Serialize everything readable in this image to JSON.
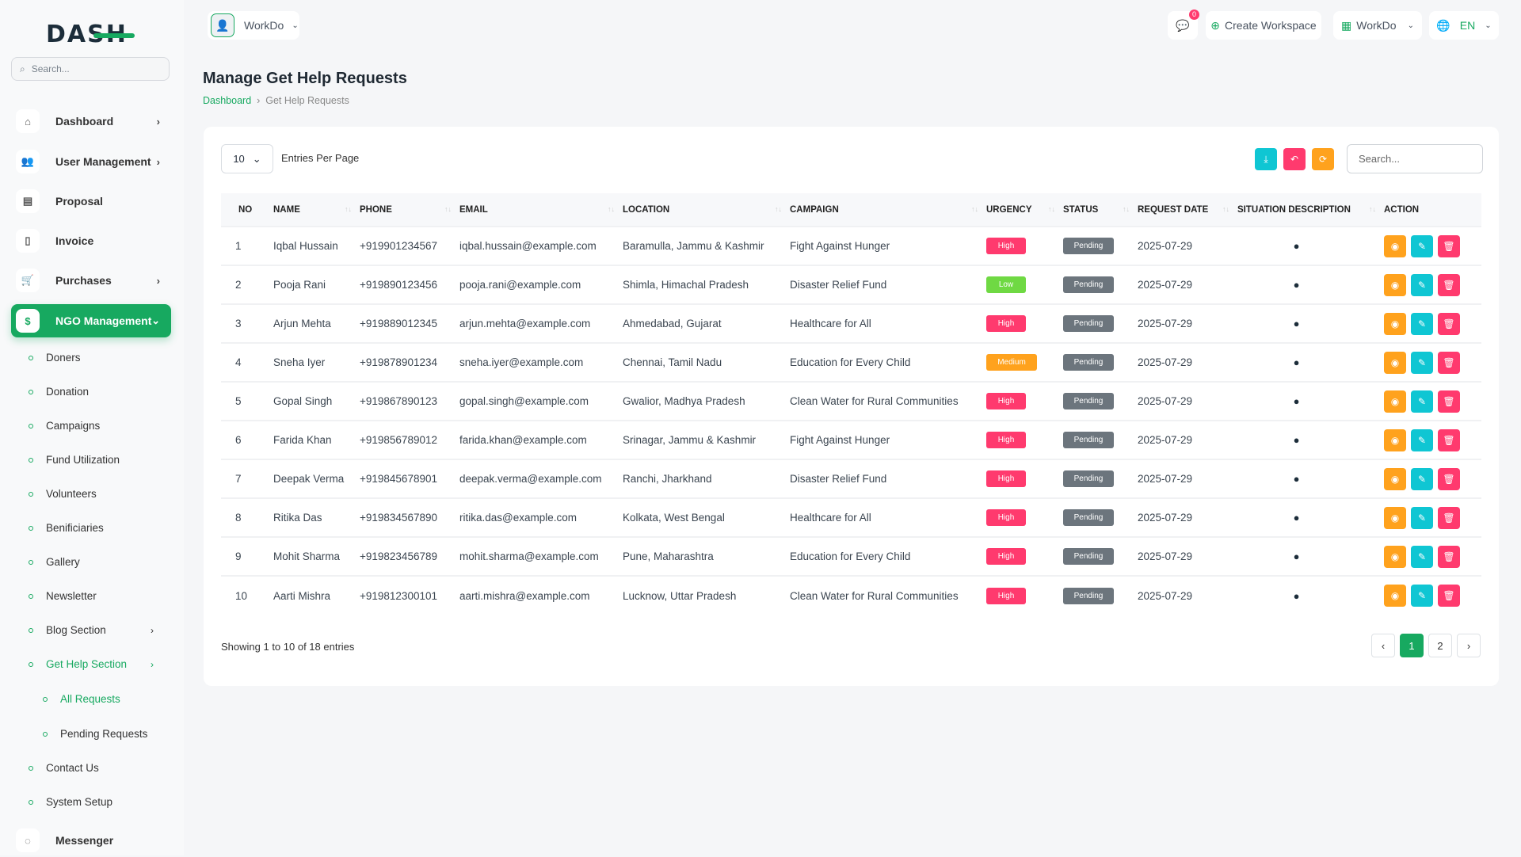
{
  "brand": {
    "logo": "DASH",
    "accent": "#17a960"
  },
  "sidebar": {
    "search_placeholder": "Search...",
    "items": [
      {
        "label": "Dashboard",
        "icon": "home-icon"
      },
      {
        "label": "User Management",
        "icon": "users-icon"
      },
      {
        "label": "Proposal",
        "icon": "proposal-icon"
      },
      {
        "label": "Invoice",
        "icon": "invoice-icon"
      },
      {
        "label": "Purchases",
        "icon": "cart-icon"
      },
      {
        "label": "NGO Management",
        "icon": "dollar-icon"
      }
    ],
    "ngo_sub": [
      "Doners",
      "Donation",
      "Campaigns",
      "Fund Utilization",
      "Volunteers",
      "Benificiaries",
      "Gallery",
      "Newsletter",
      "Blog Section",
      "Get Help Section"
    ],
    "help_sub": [
      "All Requests",
      "Pending Requests"
    ],
    "after": [
      "Contact Us",
      "System Setup"
    ],
    "messenger": "Messenger"
  },
  "header": {
    "workspace": "WorkDo",
    "notif_count": "0",
    "create_workspace": "Create Workspace",
    "workdo": "WorkDo",
    "lang": "EN"
  },
  "page": {
    "title": "Manage Get Help Requests",
    "breadcrumb": [
      "Dashboard",
      "Get Help Requests"
    ]
  },
  "table": {
    "entries": "10",
    "entries_label": "Entries Per Page",
    "search_placeholder": "Search...",
    "columns": [
      "NO",
      "NAME",
      "PHONE",
      "EMAIL",
      "LOCATION",
      "CAMPAIGN",
      "URGENCY",
      "STATUS",
      "REQUEST DATE",
      "SITUATION DESCRIPTION",
      "ACTION"
    ],
    "rows": [
      [
        "1",
        "Iqbal Hussain",
        "+919901234567",
        "iqbal.hussain@example.com",
        "Baramulla, Jammu & Kashmir",
        "Fight Against Hunger",
        "High",
        "Pending",
        "2025-07-29"
      ],
      [
        "2",
        "Pooja Rani",
        "+919890123456",
        "pooja.rani@example.com",
        "Shimla, Himachal Pradesh",
        "Disaster Relief Fund",
        "Low",
        "Pending",
        "2025-07-29"
      ],
      [
        "3",
        "Arjun Mehta",
        "+919889012345",
        "arjun.mehta@example.com",
        "Ahmedabad, Gujarat",
        "Healthcare for All",
        "High",
        "Pending",
        "2025-07-29"
      ],
      [
        "4",
        "Sneha Iyer",
        "+919878901234",
        "sneha.iyer@example.com",
        "Chennai, Tamil Nadu",
        "Education for Every Child",
        "Medium",
        "Pending",
        "2025-07-29"
      ],
      [
        "5",
        "Gopal Singh",
        "+919867890123",
        "gopal.singh@example.com",
        "Gwalior, Madhya Pradesh",
        "Clean Water for Rural Communities",
        "High",
        "Pending",
        "2025-07-29"
      ],
      [
        "6",
        "Farida Khan",
        "+919856789012",
        "farida.khan@example.com",
        "Srinagar, Jammu & Kashmir",
        "Fight Against Hunger",
        "High",
        "Pending",
        "2025-07-29"
      ],
      [
        "7",
        "Deepak Verma",
        "+919845678901",
        "deepak.verma@example.com",
        "Ranchi, Jharkhand",
        "Disaster Relief Fund",
        "High",
        "Pending",
        "2025-07-29"
      ],
      [
        "8",
        "Ritika Das",
        "+919834567890",
        "ritika.das@example.com",
        "Kolkata, West Bengal",
        "Healthcare for All",
        "High",
        "Pending",
        "2025-07-29"
      ],
      [
        "9",
        "Mohit Sharma",
        "+919823456789",
        "mohit.sharma@example.com",
        "Pune, Maharashtra",
        "Education for Every Child",
        "High",
        "Pending",
        "2025-07-29"
      ],
      [
        "10",
        "Aarti Mishra",
        "+919812300101",
        "aarti.mishra@example.com",
        "Lucknow, Uttar Pradesh",
        "Clean Water for Rural Communities",
        "High",
        "Pending",
        "2025-07-29"
      ]
    ],
    "urgency_colors": {
      "High": "#ff3a6e",
      "Low": "#6fd943",
      "Medium": "#ffa21d"
    },
    "footer": "Showing 1 to 10 of 18 entries",
    "pages": [
      "1",
      "2"
    ],
    "current_page": "1"
  }
}
